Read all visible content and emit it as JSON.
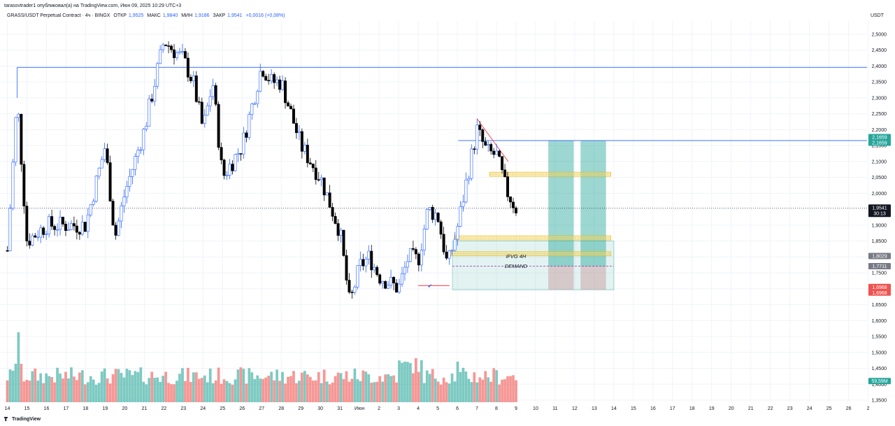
{
  "header": {
    "publish_line": "tarasovtrader1 опубликовал(а) на TradingView.com, Июн 09, 2025 10:29 UTC+3",
    "symbol": "GRASS/USDT Perpetual Contract · 4ч · BINGX",
    "open_label": "ОТКР",
    "open_value": "1,9525",
    "high_label": "МАКС",
    "high_value": "1,9840",
    "low_label": "МИН",
    "low_value": "1,9186",
    "close_label": "ЗАКР",
    "close_value": "1,9541",
    "change": "+0,0016 (+0,08%)",
    "currency": "USDT"
  },
  "brand": "TradingView",
  "colors": {
    "candle_up": "#ffffff",
    "candle_up_border": "#2962ff",
    "candle_down": "#000000",
    "volume_up": "#26a69a",
    "volume_down": "#ef5350",
    "price_line": "#2962ff",
    "teal_zone": "#26a69a",
    "red_zone": "#c8a0a0",
    "yellow_zone": "#f5d76e"
  },
  "chart_data": {
    "type": "candlestick",
    "y_ticks": [
      "2,5000",
      "2,4500",
      "2,4000",
      "2,3500",
      "2,3000",
      "2,2500",
      "2,2000",
      "2,1500",
      "2,1000",
      "2,0500",
      "2,0000",
      "1,9500",
      "1,9000",
      "1,8500",
      "1,8000",
      "1,7500",
      "1,7000",
      "1,6500",
      "1,6000",
      "1,5500",
      "1,5000",
      "1,4500",
      "1,4000",
      "1,3500"
    ],
    "ylim": [
      1.34,
      2.535
    ],
    "x_ticks": [
      "14",
      "15",
      "16",
      "17",
      "18",
      "19",
      "20",
      "21",
      "22",
      "23",
      "24",
      "25",
      "26",
      "27",
      "28",
      "29",
      "30",
      "31",
      "Июн",
      "2",
      "3",
      "4",
      "5",
      "6",
      "7",
      "8",
      "9",
      "10",
      "11",
      "12",
      "13",
      "14",
      "15",
      "16",
      "17",
      "18",
      "19",
      "20",
      "21",
      "22",
      "23",
      "24",
      "25",
      "26",
      "2"
    ],
    "candle_interval_hours": 4,
    "candle_count": 184,
    "anchor_prices": [
      {
        "date": "14",
        "price": 1.82
      },
      {
        "date": "14.5",
        "price": 2.3
      },
      {
        "date": "15",
        "price": 1.85
      },
      {
        "date": "16",
        "price": 1.9
      },
      {
        "date": "17",
        "price": 1.9
      },
      {
        "date": "18",
        "price": 1.9
      },
      {
        "date": "19",
        "price": 2.15
      },
      {
        "date": "19.5",
        "price": 1.86
      },
      {
        "date": "20",
        "price": 2.0
      },
      {
        "date": "21",
        "price": 2.2
      },
      {
        "date": "22",
        "price": 2.48
      },
      {
        "date": "23",
        "price": 2.42
      },
      {
        "date": "23.5",
        "price": 2.35
      },
      {
        "date": "24",
        "price": 2.2
      },
      {
        "date": "24.5",
        "price": 2.35
      },
      {
        "date": "25",
        "price": 2.05
      },
      {
        "date": "26",
        "price": 2.15
      },
      {
        "date": "27",
        "price": 2.4
      },
      {
        "date": "27.5",
        "price": 2.35
      },
      {
        "date": "28",
        "price": 2.35
      },
      {
        "date": "29",
        "price": 2.15
      },
      {
        "date": "30",
        "price": 2.05
      },
      {
        "date": "31",
        "price": 1.88
      },
      {
        "date": "31.5",
        "price": 1.65
      },
      {
        "date": "Июн",
        "price": 1.77
      },
      {
        "date": "Июн.5",
        "price": 1.8
      },
      {
        "date": "2",
        "price": 1.74
      },
      {
        "date": "3",
        "price": 1.7
      },
      {
        "date": "3.5",
        "price": 1.8
      },
      {
        "date": "4",
        "price": 1.79
      },
      {
        "date": "4.5",
        "price": 1.95
      },
      {
        "date": "5",
        "price": 1.93
      },
      {
        "date": "5.5",
        "price": 1.77
      },
      {
        "date": "6",
        "price": 1.89
      },
      {
        "date": "6.5",
        "price": 2.05
      },
      {
        "date": "7",
        "price": 2.2
      },
      {
        "date": "7.5",
        "price": 2.13
      },
      {
        "date": "8",
        "price": 2.12
      },
      {
        "date": "8.5",
        "price": 2.01
      },
      {
        "date": "9",
        "price": 1.954
      }
    ],
    "volume_profile_note": "",
    "current_price": "1,9541",
    "current_countdown": "30:13",
    "price_labels": [
      {
        "text": "2,1659",
        "bg": "#26a69a"
      },
      {
        "text": "2,1659",
        "bg": "#26a69a"
      },
      {
        "text": "1,8029",
        "bg": "#787b86"
      },
      {
        "text": "1,7711",
        "bg": "#787b86"
      },
      {
        "text": "1,6968",
        "bg": "#ef5350"
      },
      {
        "text": "1,6968",
        "bg": "#ef5350"
      },
      {
        "text": "59,59M",
        "bg": "#26a69a"
      }
    ],
    "levels": {
      "resistance": 2.396,
      "target": 2.1659,
      "ifvg_low": 1.8029,
      "demand_top": 1.7711,
      "stop": 1.6968,
      "zone_top": 1.85,
      "yellow_mid": 2.06,
      "yellow_low_a": 1.86,
      "yellow_low_b": 1.81
    },
    "annotations": [
      "iFVG 4H",
      "DEMAND"
    ],
    "trendline_label": "",
    "grid": true
  }
}
